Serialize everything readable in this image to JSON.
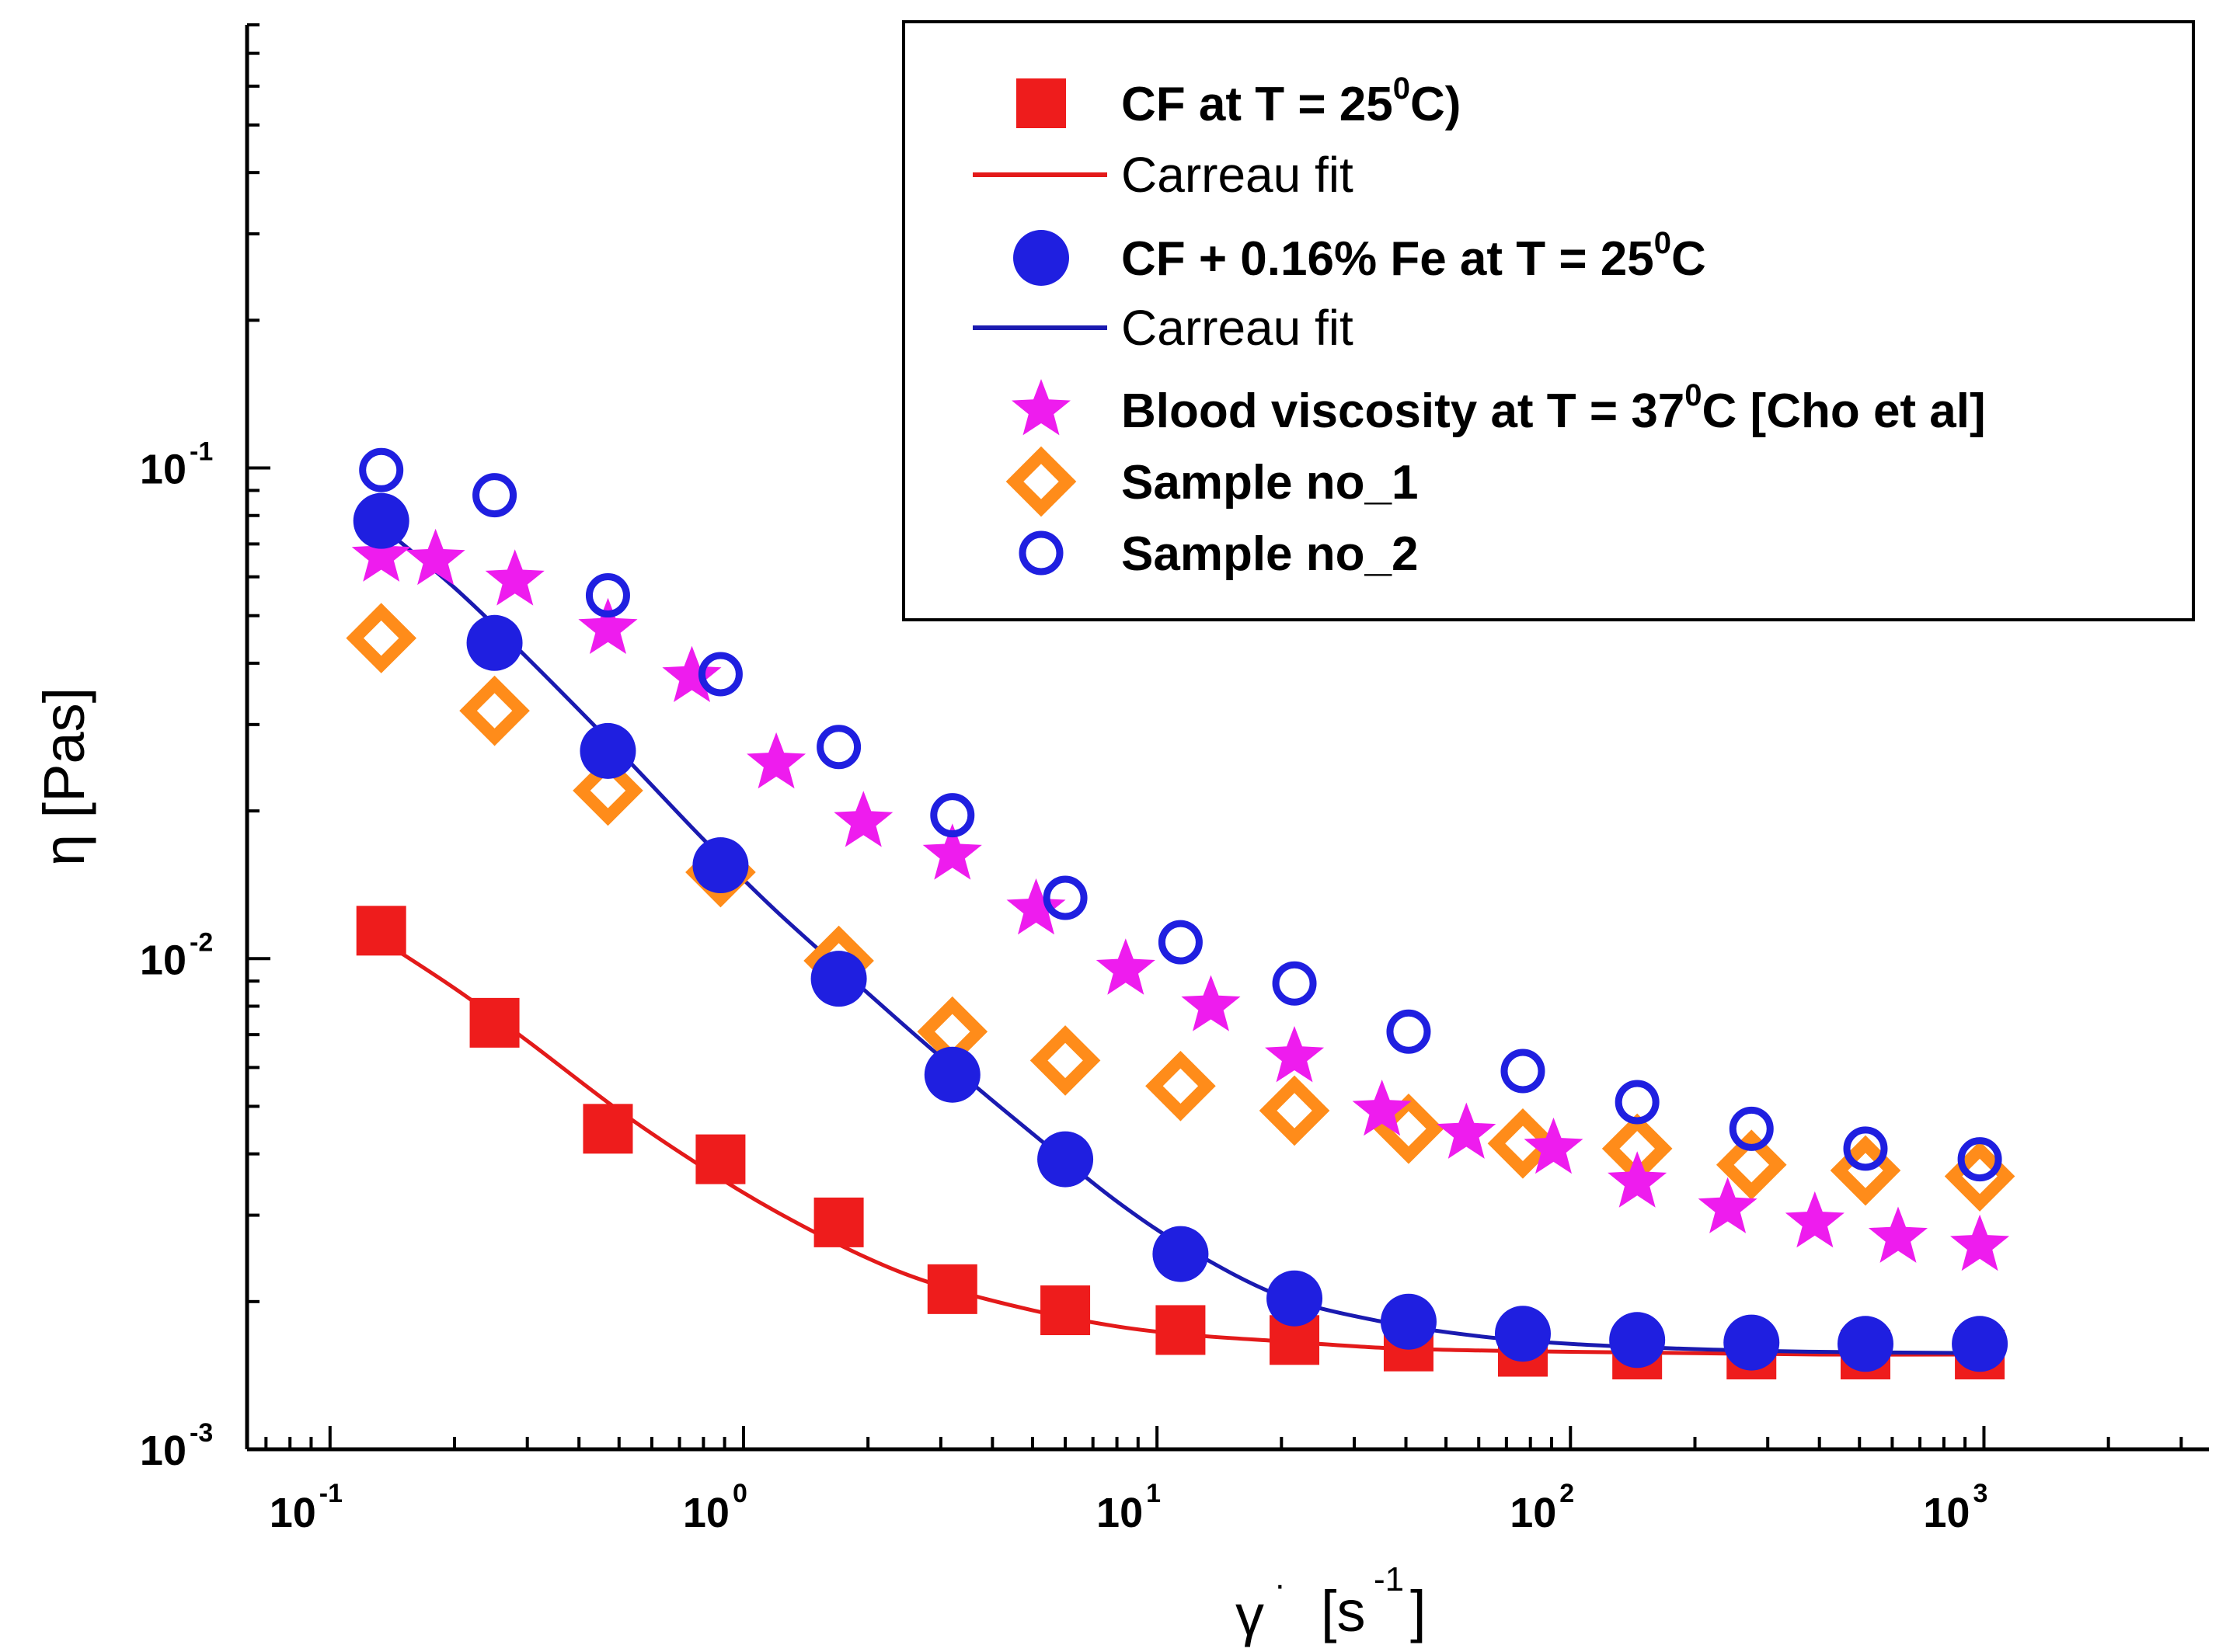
{
  "chart_data": {
    "type": "scatter",
    "xscale": "log",
    "yscale": "log",
    "xlim": [
      0.063,
      3500
    ],
    "ylim": [
      0.001,
      0.8
    ],
    "xlabel": "γ̇  [s⁻¹]",
    "xlabel_parts": {
      "symbol": "γ",
      "dot": "·",
      "unit_open": "[s",
      "unit_exp": "-1",
      "unit_close": "]"
    },
    "ylabel": "η  [Pas]",
    "x_ticks": [
      {
        "value": 0.1,
        "base": "10",
        "exp": "-1"
      },
      {
        "value": 1,
        "base": "10",
        "exp": "0"
      },
      {
        "value": 10,
        "base": "10",
        "exp": "1"
      },
      {
        "value": 100,
        "base": "10",
        "exp": "2"
      },
      {
        "value": 1000,
        "base": "10",
        "exp": "3"
      }
    ],
    "y_ticks": [
      {
        "value": 0.001,
        "base": "10",
        "exp": "-3"
      },
      {
        "value": 0.01,
        "base": "10",
        "exp": "-2"
      },
      {
        "value": 0.1,
        "base": "10",
        "exp": "-1"
      }
    ],
    "legend_position": "top-right",
    "legend": [
      {
        "label": "CF at T = 25",
        "sup": "0",
        "suffix": "C)",
        "marker": "square",
        "bold": true
      },
      {
        "label": "Carreau fit",
        "line": "red",
        "bold": false
      },
      {
        "label": "CF + 0.16% Fe at T = 25",
        "sup": "0",
        "suffix": "C",
        "marker": "circle",
        "bold": true
      },
      {
        "label": "Carreau fit",
        "line": "blue",
        "bold": false
      },
      {
        "label": "Blood viscosity at T = 37",
        "sup": "0",
        "suffix": "C [Cho et al]",
        "marker": "star",
        "bold": true
      },
      {
        "label": "Sample no_1",
        "marker": "diamond",
        "bold": true
      },
      {
        "label": "Sample no_2",
        "marker": "open-circle",
        "bold": true
      }
    ],
    "series": [
      {
        "name": "CF at T = 25°C",
        "marker": "square",
        "color": "#ee1c1c",
        "x": [
          0.133,
          0.25,
          0.47,
          0.88,
          1.7,
          3.2,
          6,
          11.4,
          21.5,
          40.6,
          76.7,
          145,
          274,
          517,
          977
        ],
        "y": [
          0.0114,
          0.0074,
          0.0045,
          0.0039,
          0.0029,
          0.00212,
          0.00192,
          0.00175,
          0.00167,
          0.00162,
          0.00158,
          0.00156,
          0.00156,
          0.00156,
          0.00156
        ]
      },
      {
        "name": "Carreau fit (CF)",
        "line": true,
        "color": "#e31a1a",
        "x": [
          0.133,
          0.2,
          0.3,
          0.5,
          0.8,
          1.2,
          2,
          3,
          5,
          8,
          12,
          20,
          35,
          60,
          100,
          200,
          400,
          1000
        ],
        "y": [
          0.0109,
          0.0087,
          0.0068,
          0.0049,
          0.00375,
          0.00305,
          0.00245,
          0.00215,
          0.00192,
          0.00178,
          0.00171,
          0.00166,
          0.00161,
          0.00159,
          0.00158,
          0.00157,
          0.00156,
          0.00156
        ]
      },
      {
        "name": "CF + 0.16% Fe at T = 25°C",
        "marker": "circle",
        "color": "#1f1fe0",
        "x": [
          0.133,
          0.25,
          0.47,
          0.88,
          1.7,
          3.2,
          6,
          11.4,
          21.5,
          40.6,
          76.7,
          145,
          274,
          517,
          977
        ],
        "y": [
          0.078,
          0.044,
          0.0265,
          0.0155,
          0.0091,
          0.0058,
          0.0039,
          0.0025,
          0.00203,
          0.00182,
          0.00172,
          0.00167,
          0.00165,
          0.00164,
          0.00164
        ]
      },
      {
        "name": "Carreau fit (CF + Fe)",
        "line": true,
        "color": "#1a1ab0",
        "x": [
          0.133,
          0.2,
          0.3,
          0.5,
          0.8,
          1.2,
          2,
          3,
          5,
          8,
          12,
          20,
          35,
          60,
          100,
          200,
          400,
          1000
        ],
        "y": [
          0.076,
          0.057,
          0.041,
          0.0265,
          0.0175,
          0.0125,
          0.0085,
          0.0063,
          0.0044,
          0.0032,
          0.00255,
          0.00205,
          0.00182,
          0.0017,
          0.00164,
          0.0016,
          0.00158,
          0.00157
        ]
      },
      {
        "name": "Blood viscosity at T = 37°C [Cho et al]",
        "marker": "star",
        "color": "#ee1cee",
        "x": [
          0.133,
          0.18,
          0.28,
          0.47,
          0.75,
          1.2,
          1.95,
          3.2,
          5.1,
          8.4,
          13.5,
          21.5,
          35,
          56,
          91,
          145,
          240,
          390,
          620,
          977
        ],
        "y": [
          0.066,
          0.065,
          0.059,
          0.047,
          0.0375,
          0.025,
          0.019,
          0.0163,
          0.0126,
          0.0095,
          0.008,
          0.0063,
          0.0049,
          0.0044,
          0.0041,
          0.0035,
          0.0031,
          0.0029,
          0.0027,
          0.0026
        ]
      },
      {
        "name": "Sample no_1",
        "marker": "diamond",
        "color": "#ff8c1a",
        "x": [
          0.133,
          0.25,
          0.47,
          0.88,
          1.7,
          3.2,
          6,
          11.4,
          21.5,
          40.6,
          76.7,
          145,
          274,
          517,
          977
        ],
        "y": [
          0.045,
          0.032,
          0.022,
          0.015,
          0.0099,
          0.0071,
          0.0062,
          0.0055,
          0.0049,
          0.0045,
          0.0042,
          0.0041,
          0.0038,
          0.0037,
          0.0036
        ]
      },
      {
        "name": "Sample no_2",
        "marker": "open-circle",
        "color": "#1f1fe0",
        "x": [
          0.133,
          0.25,
          0.47,
          0.88,
          1.7,
          3.2,
          6,
          11.4,
          21.5,
          40.6,
          76.7,
          145,
          274,
          517,
          977
        ],
        "y": [
          0.099,
          0.088,
          0.055,
          0.038,
          0.027,
          0.0196,
          0.0133,
          0.0108,
          0.0089,
          0.0071,
          0.0059,
          0.0051,
          0.0045,
          0.0041,
          0.0039
        ]
      }
    ]
  }
}
